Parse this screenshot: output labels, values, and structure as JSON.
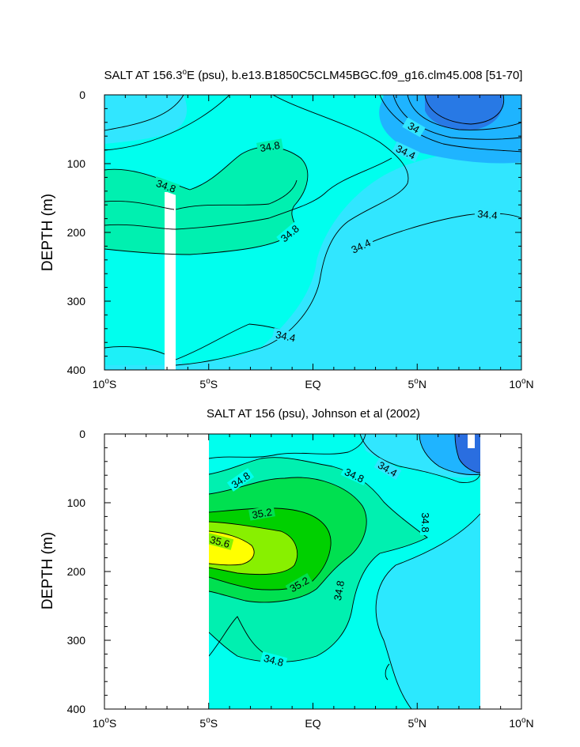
{
  "chart_data": [
    {
      "type": "contour",
      "title": "SALT AT 156.3°E (psu), b.e13.B1850C5CLM45BGC.f09_g16.clm45.008 [51-70]",
      "title_parts": {
        "pre": "SALT AT 156.3",
        "deg": "o",
        "post": "E (psu), b.e13.B1850C5CLM45BGC.f09_g16.clm45.008 [51-70]"
      },
      "xlabel": "",
      "ylabel": "DEPTH (m)",
      "xlim": [
        -10,
        10
      ],
      "ylim": [
        400,
        0
      ],
      "x_ticks": [
        {
          "value": -10,
          "num": "10",
          "sup": "o",
          "hem": "S"
        },
        {
          "value": -5,
          "num": "5",
          "sup": "o",
          "hem": "S"
        },
        {
          "value": 0,
          "num": "EQ",
          "sup": "",
          "hem": ""
        },
        {
          "value": 5,
          "num": "5",
          "sup": "o",
          "hem": "N"
        },
        {
          "value": 10,
          "num": "10",
          "sup": "o",
          "hem": "N"
        }
      ],
      "y_ticks": [
        "0",
        "100",
        "200",
        "300",
        "400"
      ],
      "contour_labels": [
        "34",
        "34.4",
        "34.8",
        "34.8",
        "34.8",
        "34.4",
        "34.4",
        "34.4"
      ],
      "palette": [
        "#2a6ee0",
        "#1fb4ff",
        "#31e6ff",
        "#00ffee",
        "#00f0b0",
        "#00e050",
        "#00d000",
        "#88f000",
        "#ffff00"
      ],
      "contour_levels": [
        33.8,
        34.0,
        34.2,
        34.4,
        34.6,
        34.8,
        35.0,
        35.2,
        35.4,
        35.6
      ]
    },
    {
      "type": "contour",
      "title": "SALT AT 156 (psu), Johnson et al (2002)",
      "xlabel": "",
      "ylabel": "DEPTH (m)",
      "xlim": [
        -10,
        10
      ],
      "ylim": [
        400,
        0
      ],
      "data_extent_lon": [
        -5,
        8
      ],
      "x_ticks": [
        {
          "value": -10,
          "num": "10",
          "sup": "o",
          "hem": "S"
        },
        {
          "value": -5,
          "num": "5",
          "sup": "o",
          "hem": "S"
        },
        {
          "value": 0,
          "num": "EQ",
          "sup": "",
          "hem": ""
        },
        {
          "value": 5,
          "num": "5",
          "sup": "o",
          "hem": "N"
        },
        {
          "value": 10,
          "num": "10",
          "sup": "o",
          "hem": "N"
        }
      ],
      "y_ticks": [
        "0",
        "100",
        "200",
        "300",
        "400"
      ],
      "contour_labels": [
        "34.8",
        "34.8",
        "34.4",
        "35.2",
        "35.6",
        "34.8",
        "35.2",
        "34.8",
        "34.8"
      ]
    }
  ]
}
